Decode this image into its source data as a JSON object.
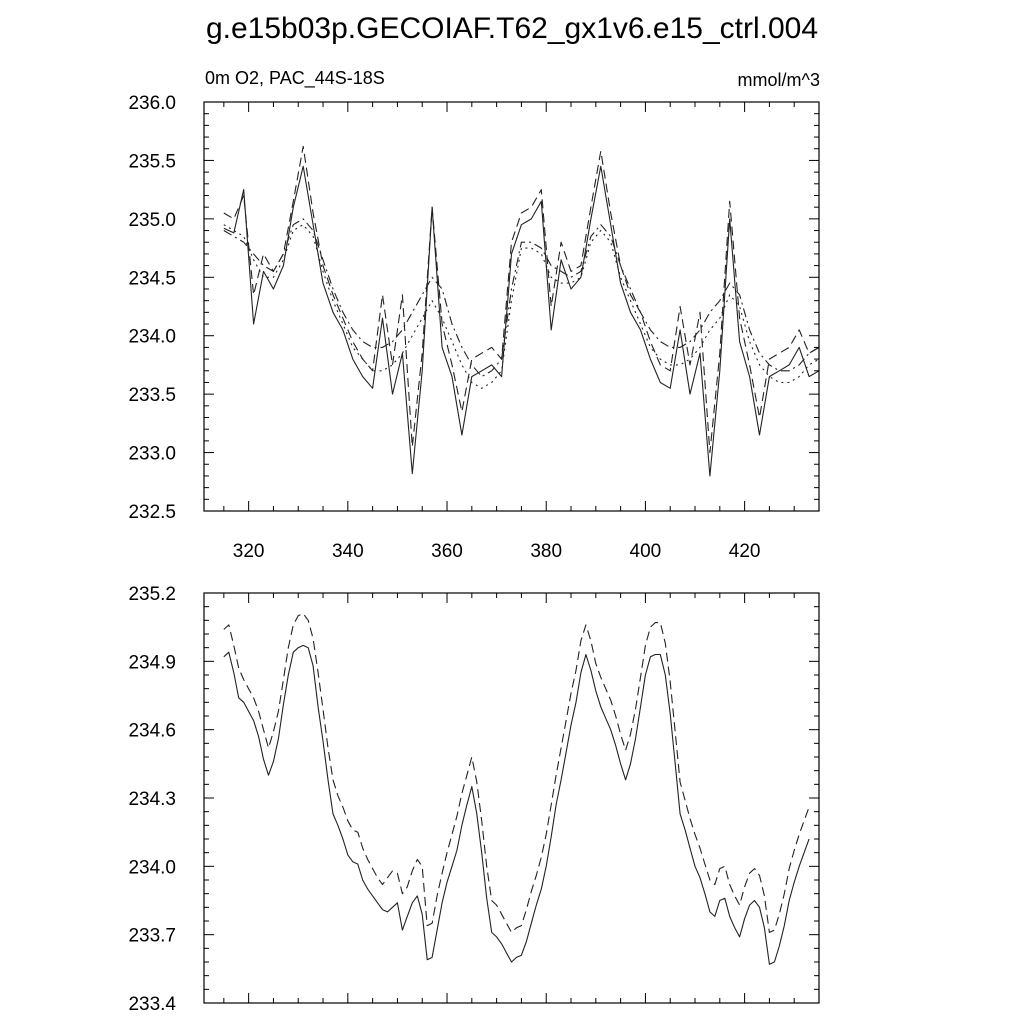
{
  "chart_data": [
    {
      "type": "line",
      "title": "g.e15b03p.GECOIAF.T62_gx1v6.e15_ctrl.004",
      "left_label": "0m O2, PAC_44S-18S",
      "right_label": "mmol/m^3",
      "xlabel": "",
      "ylabel": "",
      "xlim": [
        311,
        435
      ],
      "ylim": [
        232.5,
        236.0
      ],
      "x_ticks": [
        320,
        340,
        360,
        380,
        400,
        420
      ],
      "y_ticks": [
        232.5,
        233.0,
        233.5,
        234.0,
        234.5,
        235.0,
        235.5,
        236.0
      ],
      "y_tick_labels": [
        "232.5",
        "233.0",
        "233.5",
        "234.0",
        "234.5",
        "235.0",
        "235.5",
        "236.0"
      ],
      "grid": false,
      "legend": "none",
      "x": [
        315,
        317,
        319,
        321,
        323,
        325,
        327,
        329,
        331,
        333,
        335,
        337,
        339,
        341,
        343,
        345,
        347,
        349,
        351,
        353,
        355,
        357,
        359,
        361,
        363,
        365,
        367,
        369,
        371,
        373,
        375,
        377,
        379,
        381,
        383,
        385,
        387,
        389,
        391,
        393,
        395,
        397,
        399,
        401,
        403,
        405,
        407,
        409,
        411,
        413,
        415,
        417,
        419,
        421,
        423,
        425,
        427,
        429,
        431,
        433,
        435
      ],
      "series": [
        {
          "style": "solid",
          "values": [
            234.92,
            234.88,
            235.25,
            234.1,
            234.55,
            234.4,
            234.6,
            235.1,
            235.45,
            234.95,
            234.45,
            234.2,
            234.05,
            233.8,
            233.65,
            233.55,
            234.15,
            233.5,
            233.85,
            232.82,
            233.7,
            235.1,
            233.9,
            233.65,
            233.15,
            233.65,
            233.7,
            233.75,
            233.65,
            234.7,
            234.95,
            235.0,
            235.15,
            234.05,
            234.65,
            234.4,
            234.5,
            235.0,
            235.45,
            234.95,
            234.45,
            234.2,
            234.05,
            233.8,
            233.6,
            233.55,
            234.05,
            233.5,
            233.85,
            232.8,
            233.7,
            235.0,
            233.95,
            233.65,
            233.15,
            233.65,
            233.7,
            233.75,
            233.9,
            233.65,
            233.7
          ]
        },
        {
          "style": "dashed",
          "values": [
            235.05,
            235.0,
            235.2,
            234.35,
            234.7,
            234.55,
            234.7,
            235.15,
            235.62,
            235.05,
            234.6,
            234.35,
            234.15,
            233.95,
            233.8,
            233.7,
            234.35,
            233.75,
            234.35,
            233.05,
            233.85,
            235.1,
            234.1,
            233.75,
            233.35,
            233.8,
            233.85,
            233.9,
            233.8,
            234.8,
            235.05,
            235.1,
            235.25,
            234.25,
            234.8,
            234.55,
            234.6,
            235.1,
            235.58,
            235.05,
            234.6,
            234.35,
            234.2,
            233.95,
            233.75,
            233.7,
            234.25,
            233.75,
            234.2,
            233.0,
            233.85,
            235.15,
            234.15,
            233.75,
            233.3,
            233.8,
            233.85,
            233.9,
            234.05,
            233.85,
            233.9
          ]
        },
        {
          "style": "dash-dot",
          "values": [
            234.9,
            234.85,
            234.8,
            234.7,
            234.6,
            234.55,
            234.7,
            234.95,
            235.0,
            234.9,
            234.65,
            234.4,
            234.2,
            234.05,
            233.95,
            233.9,
            233.9,
            233.95,
            234.05,
            234.2,
            234.35,
            234.5,
            234.4,
            234.1,
            233.9,
            233.75,
            233.65,
            233.7,
            233.8,
            234.4,
            234.8,
            234.8,
            234.75,
            234.6,
            234.55,
            234.5,
            234.55,
            234.85,
            234.95,
            234.85,
            234.6,
            234.4,
            234.2,
            234.05,
            233.95,
            233.9,
            233.9,
            233.95,
            234.05,
            234.2,
            234.3,
            234.45,
            234.35,
            234.05,
            233.85,
            233.75,
            233.7,
            233.7,
            233.75,
            233.85,
            233.9
          ]
        },
        {
          "style": "dotted",
          "values": [
            234.95,
            234.9,
            234.85,
            234.65,
            234.5,
            234.5,
            234.65,
            234.9,
            234.95,
            234.85,
            234.55,
            234.3,
            234.1,
            233.9,
            233.8,
            233.7,
            233.7,
            233.75,
            233.85,
            234.0,
            234.15,
            234.3,
            234.15,
            233.95,
            233.75,
            233.6,
            233.55,
            233.6,
            233.7,
            234.3,
            234.75,
            234.75,
            234.7,
            234.5,
            234.45,
            234.45,
            234.5,
            234.8,
            234.9,
            234.8,
            234.5,
            234.3,
            234.1,
            233.9,
            233.8,
            233.75,
            233.75,
            233.8,
            233.9,
            234.05,
            234.15,
            234.35,
            234.25,
            233.95,
            233.75,
            233.65,
            233.6,
            233.6,
            233.65,
            233.75,
            233.8
          ]
        }
      ]
    },
    {
      "type": "line",
      "title": "",
      "xlabel": "",
      "ylabel": "",
      "xlim": [
        311,
        435
      ],
      "ylim": [
        233.4,
        235.2
      ],
      "x_ticks": [
        320,
        340,
        360,
        380,
        400,
        420
      ],
      "y_ticks": [
        233.4,
        233.7,
        234.0,
        234.3,
        234.6,
        234.9,
        235.2
      ],
      "y_tick_labels": [
        "233.4",
        "233.7",
        "234.0",
        "234.3",
        "234.6",
        "234.9",
        "235.2"
      ],
      "grid": false,
      "legend": "none",
      "x": [
        315,
        316,
        317,
        318,
        319,
        320,
        321,
        322,
        323,
        324,
        325,
        326,
        327,
        328,
        329,
        330,
        331,
        332,
        333,
        334,
        335,
        336,
        337,
        338,
        339,
        340,
        341,
        342,
        343,
        344,
        345,
        346,
        347,
        348,
        349,
        350,
        351,
        352,
        353,
        354,
        355,
        356,
        357,
        358,
        359,
        360,
        361,
        362,
        363,
        364,
        365,
        366,
        367,
        368,
        369,
        370,
        371,
        372,
        373,
        374,
        375,
        376,
        377,
        378,
        379,
        380,
        381,
        382,
        383,
        384,
        385,
        386,
        387,
        388,
        389,
        390,
        391,
        392,
        393,
        394,
        395,
        396,
        397,
        398,
        399,
        400,
        401,
        402,
        403,
        404,
        405,
        406,
        407,
        408,
        409,
        410,
        411,
        412,
        413,
        414,
        415,
        416,
        417,
        418,
        419,
        420,
        421,
        422,
        423,
        424,
        425,
        426,
        427,
        428,
        429,
        430,
        431,
        432,
        433
      ],
      "series": [
        {
          "style": "solid",
          "values": [
            234.92,
            234.94,
            234.85,
            234.74,
            234.72,
            234.68,
            234.64,
            234.57,
            234.47,
            234.4,
            234.46,
            234.56,
            234.71,
            234.84,
            234.94,
            234.96,
            234.97,
            234.96,
            234.88,
            234.7,
            234.55,
            234.38,
            234.23,
            234.18,
            234.12,
            234.05,
            234.02,
            234.01,
            233.94,
            233.9,
            233.87,
            233.84,
            233.81,
            233.8,
            233.82,
            233.84,
            233.72,
            233.78,
            233.84,
            233.87,
            233.79,
            233.59,
            233.6,
            233.72,
            233.84,
            233.93,
            234.0,
            234.07,
            234.18,
            234.27,
            234.35,
            234.23,
            234.06,
            233.86,
            233.71,
            233.69,
            233.66,
            233.62,
            233.58,
            233.6,
            233.61,
            233.67,
            233.75,
            233.83,
            233.9,
            234.0,
            234.13,
            234.27,
            234.38,
            234.5,
            234.62,
            234.72,
            234.85,
            234.93,
            234.86,
            234.77,
            234.7,
            234.65,
            234.6,
            234.53,
            234.45,
            234.38,
            234.45,
            234.56,
            234.7,
            234.84,
            234.92,
            234.93,
            234.93,
            234.84,
            234.67,
            234.45,
            234.23,
            234.16,
            234.08,
            234.0,
            233.95,
            233.88,
            233.8,
            233.78,
            233.85,
            233.86,
            233.78,
            233.73,
            233.69,
            233.77,
            233.83,
            233.85,
            233.82,
            233.73,
            233.57,
            233.58,
            233.65,
            233.74,
            233.85,
            233.93,
            234.0,
            234.06,
            234.12
          ]
        },
        {
          "style": "dashed",
          "values": [
            235.04,
            235.06,
            234.97,
            234.87,
            234.82,
            234.78,
            234.74,
            234.68,
            234.6,
            234.52,
            234.59,
            234.68,
            234.82,
            234.96,
            235.06,
            235.1,
            235.11,
            235.08,
            235.0,
            234.85,
            234.69,
            234.52,
            234.38,
            234.31,
            234.26,
            234.2,
            234.16,
            234.15,
            234.08,
            234.03,
            233.99,
            233.95,
            233.92,
            233.95,
            233.98,
            233.97,
            233.88,
            233.91,
            233.98,
            234.03,
            234.0,
            233.74,
            233.75,
            233.87,
            233.97,
            234.06,
            234.14,
            234.22,
            234.32,
            234.4,
            234.48,
            234.37,
            234.2,
            234.0,
            233.85,
            233.83,
            233.79,
            233.75,
            233.71,
            233.73,
            233.74,
            233.81,
            233.89,
            233.96,
            234.04,
            234.14,
            234.27,
            234.4,
            234.52,
            234.64,
            234.76,
            234.86,
            234.99,
            235.06,
            234.99,
            234.89,
            234.83,
            234.78,
            234.73,
            234.66,
            234.58,
            234.51,
            234.58,
            234.69,
            234.83,
            234.97,
            235.05,
            235.07,
            235.07,
            234.98,
            234.81,
            234.59,
            234.37,
            234.29,
            234.21,
            234.14,
            234.08,
            234.01,
            233.94,
            233.92,
            233.99,
            234.0,
            233.92,
            233.87,
            233.83,
            233.91,
            233.97,
            233.99,
            233.96,
            233.87,
            233.71,
            233.72,
            233.79,
            233.88,
            233.99,
            234.07,
            234.14,
            234.2,
            234.26
          ]
        }
      ]
    }
  ]
}
